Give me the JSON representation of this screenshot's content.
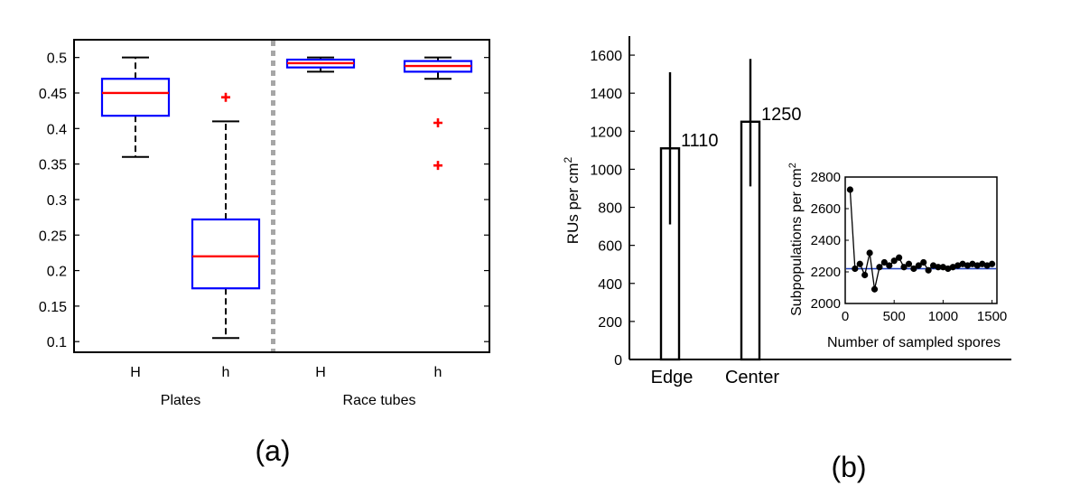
{
  "figure": {
    "panel_a_label": "(a)",
    "panel_b_label": "(b)"
  },
  "chart_data": [
    {
      "type": "box",
      "panel": "(a)",
      "title": "",
      "ylim": [
        0.085,
        0.525
      ],
      "yticks": [
        0.1,
        0.15,
        0.2,
        0.25,
        0.3,
        0.35,
        0.4,
        0.45,
        0.5
      ],
      "ytick_labels": [
        "0.1",
        "0.15",
        "0.2",
        "0.25",
        "0.3",
        "0.35",
        "0.4",
        "0.45",
        "0.5"
      ],
      "categories": [
        "H",
        "h",
        "H",
        "h"
      ],
      "groups": [
        {
          "label": "Plates",
          "categories": [
            0,
            1
          ]
        },
        {
          "label": "Race tubes",
          "categories": [
            2,
            3
          ]
        }
      ],
      "divider_between": [
        1,
        2
      ],
      "colors": {
        "box": "#0000ff",
        "median": "#ff0000",
        "outlier": "#ff0000",
        "whisker": "#000000",
        "divider": "#a6a6a6"
      },
      "boxes": [
        {
          "category": "H",
          "group": "Plates",
          "whisker_low": 0.36,
          "q1": 0.418,
          "median": 0.45,
          "q3": 0.47,
          "whisker_high": 0.5,
          "outliers": []
        },
        {
          "category": "h",
          "group": "Plates",
          "whisker_low": 0.105,
          "q1": 0.175,
          "median": 0.22,
          "q3": 0.272,
          "whisker_high": 0.41,
          "outliers": [
            0.444
          ]
        },
        {
          "category": "H",
          "group": "Race tubes",
          "whisker_low": 0.48,
          "q1": 0.486,
          "median": 0.492,
          "q3": 0.497,
          "whisker_high": 0.5,
          "outliers": []
        },
        {
          "category": "h",
          "group": "Race tubes",
          "whisker_low": 0.47,
          "q1": 0.48,
          "median": 0.488,
          "q3": 0.495,
          "whisker_high": 0.5,
          "outliers": [
            0.408,
            0.348
          ]
        }
      ]
    },
    {
      "type": "bar",
      "panel": "(b)",
      "title": "",
      "categories": [
        "Edge",
        "Center"
      ],
      "values": [
        1110,
        1250
      ],
      "value_labels": [
        "1110",
        "1250"
      ],
      "error_low": [
        710,
        910
      ],
      "error_high": [
        1510,
        1580
      ],
      "ylabel": "RUs per cm",
      "ylabel_superscript": "2",
      "ylim": [
        0,
        1700
      ],
      "yticks": [
        0,
        200,
        400,
        600,
        800,
        1000,
        1200,
        1400,
        1600
      ],
      "ytick_labels": [
        "0",
        "200",
        "400",
        "600",
        "800",
        "1000",
        "1200",
        "1400",
        "1600"
      ]
    },
    {
      "type": "line",
      "panel": "(b) inset",
      "title": "",
      "xlabel": "Number of sampled spores",
      "ylabel": "Subpopulations per cm",
      "ylabel_superscript": "2",
      "xlim": [
        0,
        1550
      ],
      "ylim": [
        2000,
        2800
      ],
      "xticks": [
        0,
        500,
        1000,
        1500
      ],
      "xtick_labels": [
        "0",
        "500",
        "1000",
        "1500"
      ],
      "yticks": [
        2000,
        2200,
        2400,
        2600,
        2800
      ],
      "ytick_labels": [
        "2000",
        "2200",
        "2400",
        "2600",
        "2800"
      ],
      "reference_line": 2220,
      "colors": {
        "line": "#000000",
        "marker": "#000000",
        "reference": "#1f3fbf"
      },
      "series": [
        {
          "x": [
            50,
            100,
            150,
            200,
            250,
            300,
            350,
            400,
            450,
            500,
            550,
            600,
            650,
            700,
            750,
            800,
            850,
            900,
            950,
            1000,
            1050,
            1100,
            1150,
            1200,
            1250,
            1300,
            1350,
            1400,
            1450,
            1500
          ],
          "y": [
            2720,
            2220,
            2250,
            2180,
            2320,
            2090,
            2230,
            2260,
            2240,
            2270,
            2290,
            2230,
            2250,
            2220,
            2240,
            2260,
            2210,
            2240,
            2230,
            2230,
            2220,
            2230,
            2240,
            2250,
            2240,
            2250,
            2240,
            2250,
            2240,
            2250
          ]
        }
      ]
    }
  ]
}
